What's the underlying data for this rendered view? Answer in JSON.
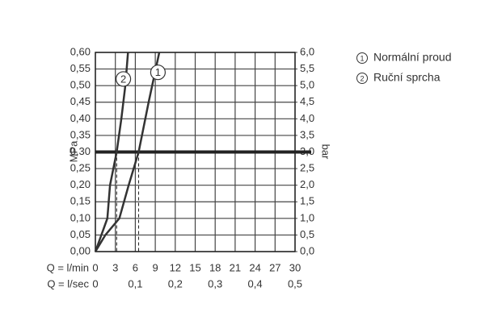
{
  "chart_data": {
    "type": "line",
    "ylabel": "MPa",
    "y2label": "bar",
    "xlabel": "Q = l/min",
    "x2label": "Q = l/sec",
    "xlim": [
      0,
      30
    ],
    "xticks": [
      0,
      3,
      6,
      9,
      12,
      15,
      18,
      21,
      24,
      27,
      30
    ],
    "x2lim": [
      0,
      0.5
    ],
    "x2ticks": [
      0,
      {
        "value": 0.1,
        "label": "0,1"
      },
      {
        "value": 0.2,
        "label": "0,2"
      },
      {
        "value": 0.3,
        "label": "0,3"
      },
      {
        "value": 0.4,
        "label": "0,4"
      },
      {
        "value": 0.5,
        "label": "0,5"
      }
    ],
    "ylim": [
      0,
      0.6
    ],
    "yticks": [
      {
        "value": 0,
        "label": "0,00"
      },
      {
        "value": 0.05,
        "label": "0,05"
      },
      {
        "value": 0.1,
        "label": "0,10"
      },
      {
        "value": 0.15,
        "label": "0,15"
      },
      {
        "value": 0.2,
        "label": "0,20"
      },
      {
        "value": 0.25,
        "label": "0,25"
      },
      {
        "value": 0.3,
        "label": "0,30"
      },
      {
        "value": 0.35,
        "label": "0,35"
      },
      {
        "value": 0.4,
        "label": "0,40"
      },
      {
        "value": 0.45,
        "label": "0,45"
      },
      {
        "value": 0.5,
        "label": "0,50"
      },
      {
        "value": 0.55,
        "label": "0,55"
      },
      {
        "value": 0.6,
        "label": "0,60"
      }
    ],
    "y2lim": [
      0,
      6
    ],
    "y2ticks": [
      {
        "value": 0,
        "label": "0,0"
      },
      {
        "value": 0.5,
        "label": "0,5"
      },
      {
        "value": 1,
        "label": "1,0"
      },
      {
        "value": 1.5,
        "label": "1,5"
      },
      {
        "value": 2,
        "label": "2,0"
      },
      {
        "value": 2.5,
        "label": "2,5"
      },
      {
        "value": 3,
        "label": "3,0"
      },
      {
        "value": 3.5,
        "label": "3,5"
      },
      {
        "value": 4,
        "label": "4,0"
      },
      {
        "value": 4.5,
        "label": "4,5"
      },
      {
        "value": 5,
        "label": "5,0"
      },
      {
        "value": 5.5,
        "label": "5,5"
      },
      {
        "value": 6,
        "label": "6,0"
      }
    ],
    "grid": true,
    "reference_lines": {
      "y": 0.3,
      "x": [
        3.2,
        6.5
      ]
    },
    "series": [
      {
        "name": "Normální proud",
        "label": "1",
        "color": "#333333",
        "x": [
          0,
          1.5,
          3.6,
          5,
          6.5,
          8,
          9.6
        ],
        "values": [
          0,
          0.05,
          0.1,
          0.2,
          0.3,
          0.45,
          0.6
        ],
        "label_at": [
          9.4,
          0.54
        ]
      },
      {
        "name": "Ruční sprcha",
        "label": "2",
        "color": "#333333",
        "x": [
          0,
          1.8,
          2.2,
          3.2,
          3.9,
          4.5,
          4.9
        ],
        "values": [
          0,
          0.1,
          0.2,
          0.3,
          0.4,
          0.5,
          0.6
        ],
        "label_at": [
          4.2,
          0.52
        ]
      }
    ]
  }
}
